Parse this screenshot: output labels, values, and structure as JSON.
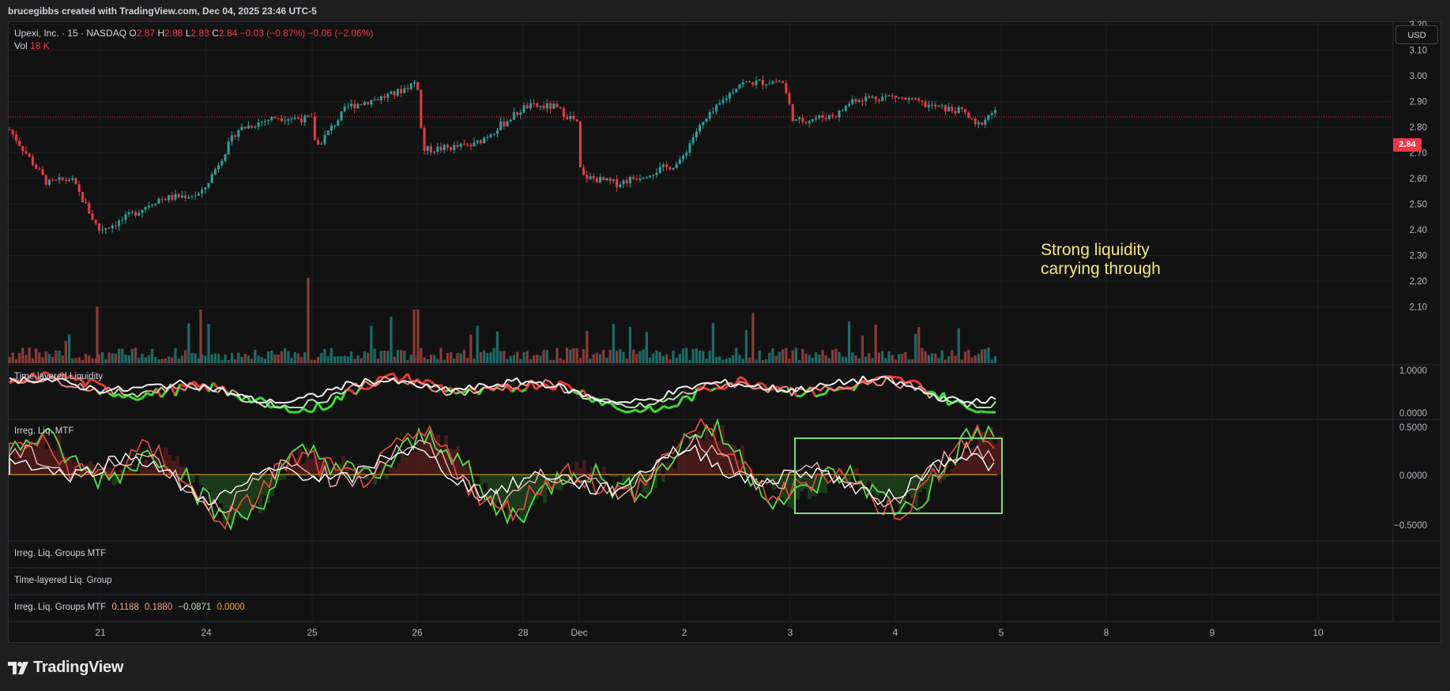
{
  "header": {
    "text": "brucegibbs created with TradingView.com, Dec 04, 2025 23:46 UTC-5"
  },
  "symbol": {
    "title": "Upexi, Inc. · 15 · NASDAQ",
    "o_label": "O",
    "o": "2.87",
    "h_label": "H",
    "h": "2.88",
    "l_label": "L",
    "l": "2.83",
    "c_label": "C",
    "c": "2.84",
    "change": "−0.03 (−0.87%)",
    "change2": "−0.06 (−2.06%)",
    "vol_label": "Vol",
    "vol": "18 K",
    "last_price": "2.84"
  },
  "currency_button": "USD",
  "price_axis": [
    "3.20",
    "3.10",
    "3.00",
    "2.90",
    "2.80",
    "2.70",
    "2.60",
    "2.50",
    "2.40",
    "2.30",
    "2.20",
    "2.10"
  ],
  "panes": {
    "time_layered": {
      "title": "Time-layered Liquidity",
      "ticks": [
        "1.0000",
        "0.0000"
      ]
    },
    "irreg_mtf": {
      "title": "Irreg. Liq. MTF",
      "ticks": [
        "0.5000",
        "0.0000",
        "−0.5000"
      ]
    },
    "groups_mtf": {
      "title": "Irreg. Liq. Groups MTF"
    },
    "tl_group": {
      "title": "Time-layered Liq. Group"
    },
    "groups_mtf2": {
      "title": "Irreg. Liq. Groups MTF",
      "v1": "0.1188",
      "v2": "0.1880",
      "v3": "−0.0871",
      "v4": "0.0000"
    }
  },
  "time_axis": [
    "21",
    "24",
    "25",
    "26",
    "28",
    "Dec",
    "2",
    "3",
    "4",
    "5",
    "8",
    "9",
    "10"
  ],
  "annotation": "Strong liquidity\ncarrying through",
  "brand": "TradingView",
  "colors": {
    "up": "#26a69a",
    "down": "#f23645",
    "volume_up": "#1e6b66",
    "volume_down": "#8c3a3a",
    "annotation": "#f7e879",
    "box": "#7fd67f"
  }
}
